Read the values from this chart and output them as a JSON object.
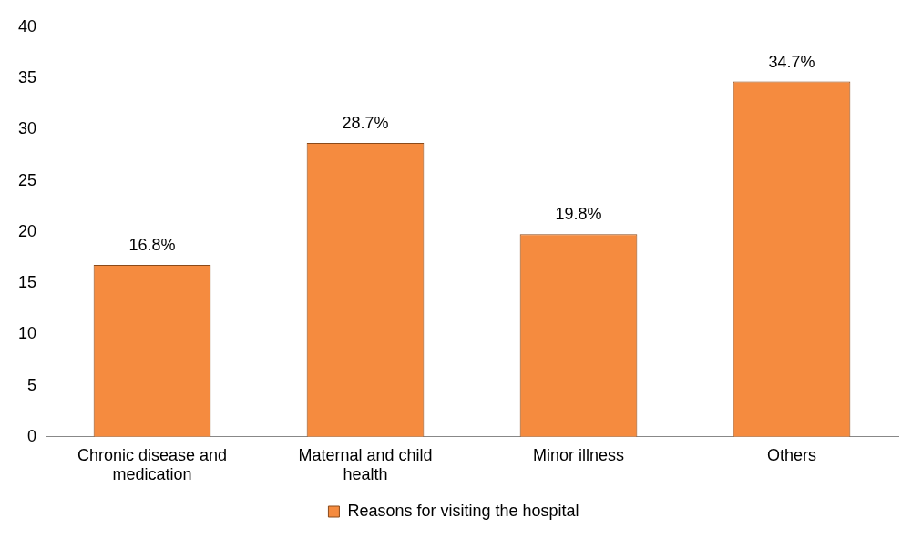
{
  "chart_data": {
    "type": "bar",
    "categories": [
      "Chronic disease and medication",
      "Maternal and child health",
      "Minor illness",
      "Others"
    ],
    "series": [
      {
        "name": "Reasons for visiting the hospital",
        "color": "#f58b3f",
        "values": [
          16.8,
          28.7,
          19.8,
          34.7
        ],
        "value_labels": [
          "16.8%",
          "28.7%",
          "19.8%",
          "34.7%"
        ]
      }
    ],
    "ylim": [
      0,
      40
    ],
    "yticks": [
      0,
      5,
      10,
      15,
      20,
      25,
      30,
      35,
      40
    ],
    "grid": false,
    "legend": "bottom"
  }
}
